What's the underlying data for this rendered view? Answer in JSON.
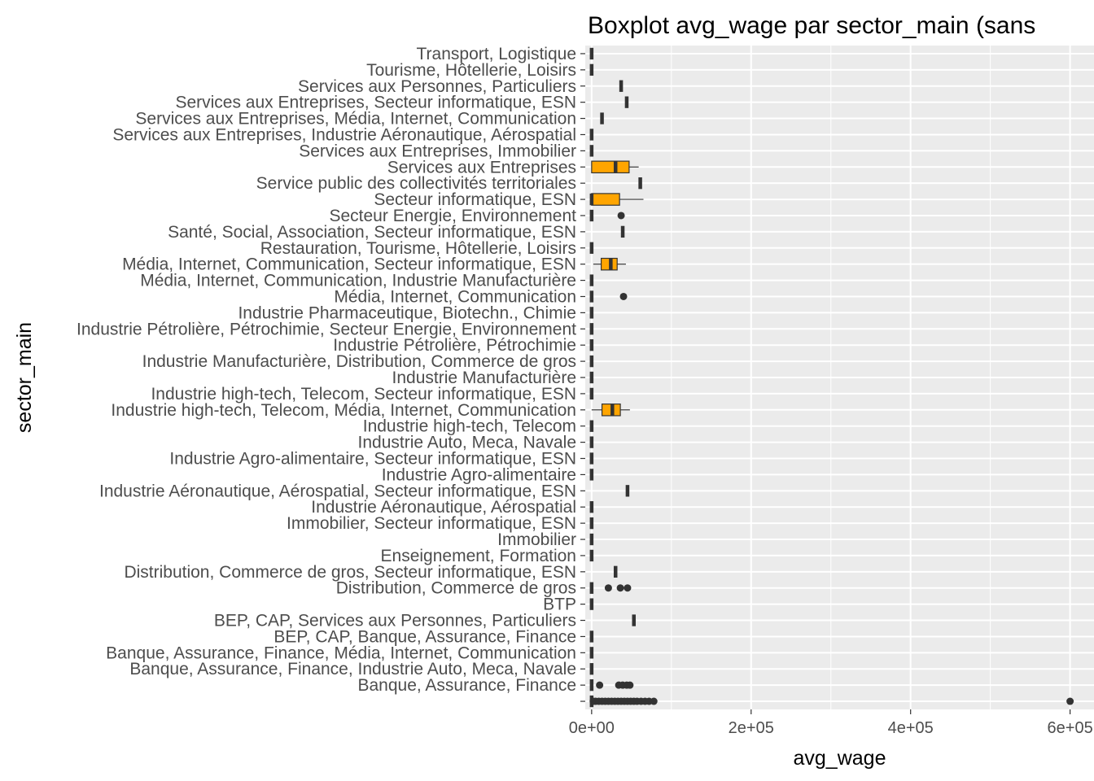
{
  "chart_data": {
    "type": "boxplot",
    "title": "Boxplot avg_wage par sector_main (sans",
    "xlabel": "avg_wage",
    "ylabel": "sector_main",
    "xlim": [
      -8000,
      630000
    ],
    "x_ticks": [
      0,
      200000,
      400000,
      600000
    ],
    "x_tick_labels": [
      "0e+00",
      "2e+05",
      "4e+05",
      "6e+05"
    ],
    "grid": true,
    "colors": {
      "panel": "#ebebeb",
      "grid": "#ffffff",
      "box_fill": "#ffa500",
      "line": "#333333",
      "outlier": "#333333"
    },
    "categories": [
      "",
      "Banque, Assurance, Finance",
      "Banque, Assurance, Finance, Industrie Auto, Meca, Navale",
      "Banque, Assurance, Finance, Média, Internet, Communication",
      "BEP, CAP, Banque, Assurance, Finance",
      "BEP, CAP, Services aux Personnes, Particuliers",
      "BTP",
      "Distribution, Commerce de gros",
      "Distribution, Commerce de gros, Secteur informatique, ESN",
      "Enseignement, Formation",
      "Immobilier",
      "Immobilier, Secteur informatique, ESN",
      "Industrie Aéronautique, Aérospatial",
      "Industrie Aéronautique, Aérospatial, Secteur informatique, ESN",
      "Industrie Agro-alimentaire",
      "Industrie Agro-alimentaire, Secteur informatique, ESN",
      "Industrie Auto, Meca, Navale",
      "Industrie high-tech, Telecom",
      "Industrie high-tech, Telecom, Média, Internet, Communication",
      "Industrie high-tech, Telecom, Secteur informatique, ESN",
      "Industrie Manufacturière",
      "Industrie Manufacturière, Distribution, Commerce de gros",
      "Industrie Pétrolière, Pétrochimie",
      "Industrie Pétrolière, Pétrochimie, Secteur Energie, Environnement",
      "Industrie Pharmaceutique, Biotechn., Chimie",
      "Média, Internet, Communication",
      "Média, Internet, Communication, Industrie Manufacturière",
      "Média, Internet, Communication, Secteur informatique, ESN",
      "Restauration, Tourisme, Hôtellerie, Loisirs",
      "Santé, Social, Association, Secteur informatique, ESN",
      "Secteur Energie, Environnement",
      "Secteur informatique, ESN",
      "Service public des collectivités territoriales",
      "Services aux Entreprises",
      "Services aux Entreprises, Immobilier",
      "Services aux Entreprises, Industrie Aéronautique, Aérospatial",
      "Services aux Entreprises, Média, Internet, Communication",
      "Services aux Entreprises, Secteur informatique, ESN",
      "Services aux Personnes, Particuliers",
      "Tourisme, Hôtellerie, Loisirs",
      "Transport, Logistique"
    ],
    "boxes": [
      {
        "min": 0,
        "q1": 0,
        "median": 0,
        "q3": 0,
        "max": 0,
        "outliers": [
          2000,
          5000,
          9000,
          13000,
          17000,
          21000,
          25000,
          29000,
          33000,
          37000,
          41000,
          45000,
          49000,
          53000,
          57000,
          62000,
          67000,
          72000,
          78000,
          600000
        ]
      },
      {
        "min": 0,
        "q1": 0,
        "median": 0,
        "q3": 0,
        "max": 0,
        "outliers": [
          10000,
          34000,
          39000,
          44000,
          48000
        ]
      },
      {
        "min": 0,
        "q1": 0,
        "median": 0,
        "q3": 0,
        "max": 0,
        "outliers": []
      },
      {
        "min": 0,
        "q1": 0,
        "median": 0,
        "q3": 0,
        "max": 0,
        "outliers": []
      },
      {
        "min": 0,
        "q1": 0,
        "median": 0,
        "q3": 0,
        "max": 0,
        "outliers": []
      },
      {
        "min": 53000,
        "q1": 53000,
        "median": 53000,
        "q3": 53000,
        "max": 53000,
        "outliers": []
      },
      {
        "min": 0,
        "q1": 0,
        "median": 0,
        "q3": 0,
        "max": 0,
        "outliers": []
      },
      {
        "min": 0,
        "q1": 0,
        "median": 0,
        "q3": 0,
        "max": 0,
        "outliers": [
          21000,
          36000,
          45000
        ]
      },
      {
        "min": 30000,
        "q1": 30000,
        "median": 30000,
        "q3": 30000,
        "max": 30000,
        "outliers": []
      },
      {
        "min": 0,
        "q1": 0,
        "median": 0,
        "q3": 0,
        "max": 0,
        "outliers": []
      },
      {
        "min": 0,
        "q1": 0,
        "median": 0,
        "q3": 0,
        "max": 0,
        "outliers": []
      },
      {
        "min": 0,
        "q1": 0,
        "median": 0,
        "q3": 0,
        "max": 0,
        "outliers": []
      },
      {
        "min": 0,
        "q1": 0,
        "median": 0,
        "q3": 0,
        "max": 0,
        "outliers": []
      },
      {
        "min": 45000,
        "q1": 45000,
        "median": 45000,
        "q3": 45000,
        "max": 45000,
        "outliers": []
      },
      {
        "min": 0,
        "q1": 0,
        "median": 0,
        "q3": 0,
        "max": 0,
        "outliers": []
      },
      {
        "min": 0,
        "q1": 0,
        "median": 0,
        "q3": 0,
        "max": 0,
        "outliers": []
      },
      {
        "min": 0,
        "q1": 0,
        "median": 0,
        "q3": 0,
        "max": 0,
        "outliers": []
      },
      {
        "min": 0,
        "q1": 0,
        "median": 0,
        "q3": 0,
        "max": 0,
        "outliers": []
      },
      {
        "min": 0,
        "q1": 13000,
        "median": 26000,
        "q3": 36000,
        "max": 48000,
        "outliers": []
      },
      {
        "min": 0,
        "q1": 0,
        "median": 0,
        "q3": 0,
        "max": 0,
        "outliers": []
      },
      {
        "min": 0,
        "q1": 0,
        "median": 0,
        "q3": 0,
        "max": 0,
        "outliers": []
      },
      {
        "min": 0,
        "q1": 0,
        "median": 0,
        "q3": 0,
        "max": 0,
        "outliers": []
      },
      {
        "min": 0,
        "q1": 0,
        "median": 0,
        "q3": 0,
        "max": 0,
        "outliers": []
      },
      {
        "min": 0,
        "q1": 0,
        "median": 0,
        "q3": 0,
        "max": 0,
        "outliers": []
      },
      {
        "min": 0,
        "q1": 0,
        "median": 0,
        "q3": 0,
        "max": 0,
        "outliers": []
      },
      {
        "min": 0,
        "q1": 0,
        "median": 0,
        "q3": 0,
        "max": 0,
        "outliers": [
          40000
        ]
      },
      {
        "min": 0,
        "q1": 0,
        "median": 0,
        "q3": 0,
        "max": 0,
        "outliers": []
      },
      {
        "min": 2000,
        "q1": 12000,
        "median": 24000,
        "q3": 32000,
        "max": 43000,
        "outliers": []
      },
      {
        "min": 0,
        "q1": 0,
        "median": 0,
        "q3": 0,
        "max": 0,
        "outliers": []
      },
      {
        "min": 39000,
        "q1": 39000,
        "median": 39000,
        "q3": 39000,
        "max": 39000,
        "outliers": []
      },
      {
        "min": 0,
        "q1": 0,
        "median": 0,
        "q3": 0,
        "max": 0,
        "outliers": [
          37000
        ]
      },
      {
        "min": 0,
        "q1": 0,
        "median": 0,
        "q3": 35000,
        "max": 65000,
        "outliers": []
      },
      {
        "min": 61000,
        "q1": 61000,
        "median": 61000,
        "q3": 61000,
        "max": 61000,
        "outliers": []
      },
      {
        "min": 0,
        "q1": 0,
        "median": 30000,
        "q3": 47000,
        "max": 59000,
        "outliers": []
      },
      {
        "min": 0,
        "q1": 0,
        "median": 0,
        "q3": 0,
        "max": 0,
        "outliers": []
      },
      {
        "min": 0,
        "q1": 0,
        "median": 0,
        "q3": 0,
        "max": 0,
        "outliers": []
      },
      {
        "min": 13000,
        "q1": 13000,
        "median": 13000,
        "q3": 13000,
        "max": 13000,
        "outliers": []
      },
      {
        "min": 44000,
        "q1": 44000,
        "median": 44000,
        "q3": 44000,
        "max": 44000,
        "outliers": []
      },
      {
        "min": 37000,
        "q1": 37000,
        "median": 37000,
        "q3": 37000,
        "max": 37000,
        "outliers": []
      },
      {
        "min": 0,
        "q1": 0,
        "median": 0,
        "q3": 0,
        "max": 0,
        "outliers": []
      },
      {
        "min": 0,
        "q1": 0,
        "median": 0,
        "q3": 0,
        "max": 0,
        "outliers": []
      }
    ]
  }
}
